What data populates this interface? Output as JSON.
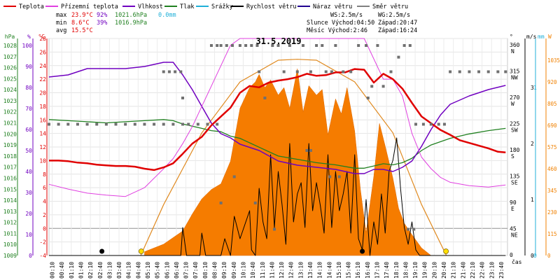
{
  "chart_data": {
    "type": "line",
    "title": "31.5.2019",
    "xlabel": "čas",
    "x_ticks": [
      "00:10",
      "00:40",
      "01:10",
      "01:40",
      "02:10",
      "02:40",
      "03:10",
      "03:40",
      "04:10",
      "04:40",
      "05:10",
      "05:40",
      "06:10",
      "06:40",
      "07:10",
      "07:40",
      "08:10",
      "08:40",
      "09:10",
      "09:40",
      "10:10",
      "10:40",
      "11:10",
      "11:40",
      "12:10",
      "12:40",
      "13:10",
      "13:40",
      "14:10",
      "14:40",
      "15:10",
      "15:40",
      "16:10",
      "16:40",
      "17:10",
      "17:40",
      "18:10",
      "18:40",
      "19:10",
      "19:40",
      "20:10",
      "20:40",
      "21:10",
      "21:40",
      "22:10",
      "22:40",
      "23:10",
      "23:40"
    ],
    "legend": [
      {
        "name": "Teplota",
        "color": "#e00000"
      },
      {
        "name": "Přízemní teplota",
        "color": "#e040e0"
      },
      {
        "name": "Vlhkost",
        "color": "#7000c0"
      },
      {
        "name": "Tlak",
        "color": "#208020"
      },
      {
        "name": "Srážky",
        "color": "#20b0d8"
      },
      {
        "name": "Rychlost větru",
        "color": "#000000"
      },
      {
        "name": "Náraz větru",
        "color": "#200090"
      },
      {
        "name": "Směr větru",
        "color": "#808080"
      }
    ],
    "stats": {
      "max_label": "max",
      "max_temp": "23.9°C",
      "max_hum": "92%",
      "max_press": "1021.6hPa",
      "max_rain": "0.0mm",
      "min_label": "min",
      "min_temp": "8.6°C",
      "min_hum": "39%",
      "min_press": "1016.9hPa",
      "avg_label": "avg",
      "avg_temp": "15.5°C"
    },
    "info": {
      "ws": "WS:2.5m/s",
      "wg": "WG:2.5m/s",
      "sun": "Slunce Východ:04:50",
      "sunset": "Západ:20:47",
      "moon": "Měsíc Východ:2:46",
      "moonset": "Západ:16:24"
    },
    "axes": {
      "hpa": {
        "label": "hPa",
        "ticks": [
          1028,
          1027,
          1026,
          1025,
          1024,
          1023,
          1022,
          1021,
          1020,
          1019,
          1018,
          1017,
          1016,
          1015,
          1014,
          1013,
          1012,
          1011,
          1010,
          1009
        ]
      },
      "pct": {
        "label": "%",
        "ticks": [
          100,
          90,
          80,
          70,
          60,
          50,
          40,
          30,
          20,
          10,
          0
        ]
      },
      "temp": {
        "label": "°C",
        "ticks": [
          28,
          26,
          24,
          22,
          20,
          18,
          16,
          14,
          12,
          10,
          8,
          6,
          4,
          2,
          0,
          -2,
          -4
        ]
      },
      "deg": {
        "label": "°",
        "ticks": [
          {
            "v": 360,
            "d": "N"
          },
          {
            "v": 315,
            "d": "NW"
          },
          {
            "v": 270,
            "d": "W"
          },
          {
            "v": 225,
            "d": "SW"
          },
          {
            "v": 180,
            "d": "S"
          },
          {
            "v": 135,
            "d": "SE"
          },
          {
            "v": 90,
            "d": "E"
          },
          {
            "v": 45,
            "d": "NE"
          },
          {
            "v": 0,
            "d": ""
          }
        ]
      },
      "ms": {
        "label": "m/s",
        "ticks": [
          {
            "v": "3"
          },
          {
            "v": "2"
          },
          {
            "v": "1"
          },
          {
            "v": "0"
          }
        ]
      },
      "mm": {
        "label": "mm",
        "ticks": [
          {
            "v": "1"
          },
          {
            "v": "0"
          }
        ]
      },
      "wm2": {
        "label": "W",
        "ticks": [
          1035,
          920,
          805,
          690,
          575,
          460,
          345,
          230,
          115,
          0
        ]
      }
    },
    "temp_range": [
      -4,
      28
    ],
    "series": [
      {
        "name": "Teplota",
        "unit": "°C",
        "x": [
          0,
          0.5,
          1,
          1.5,
          2,
          2.5,
          3,
          3.5,
          4,
          4.5,
          5,
          5.5,
          6,
          6.5,
          7,
          7.5,
          8,
          8.5,
          9,
          9.5,
          10,
          10.5,
          11,
          11.5,
          12,
          12.5,
          13,
          13.5,
          14,
          14.5,
          15,
          15.5,
          16,
          16.5,
          17,
          17.5,
          18,
          18.5,
          19,
          19.5,
          20,
          20.5,
          21,
          21.5,
          22,
          22.5,
          23,
          23.5,
          23.9
        ],
        "y": [
          10,
          10,
          9.9,
          9.7,
          9.6,
          9.4,
          9.3,
          9.2,
          9.2,
          9.1,
          8.8,
          8.6,
          9,
          9.6,
          11,
          12.5,
          13.5,
          15.2,
          16.5,
          17.8,
          20,
          21,
          20.8,
          21.5,
          21.8,
          22,
          22.3,
          22.8,
          22.5,
          22.6,
          23,
          23,
          23.5,
          23.4,
          21.5,
          22.8,
          22,
          20.6,
          18.5,
          16.5,
          15.5,
          14.5,
          13.8,
          13,
          12.6,
          12.2,
          11.8,
          11.3,
          11.2
        ]
      },
      {
        "name": "Přízemní teplota",
        "unit": "°C",
        "x": [
          0,
          1,
          2,
          3,
          4,
          5,
          6,
          6.5,
          7,
          7.5,
          8,
          8.5,
          9,
          9.5,
          10,
          11,
          12,
          13,
          14,
          15,
          16,
          16.5,
          17,
          17.5,
          18,
          18.5,
          19,
          19.5,
          20,
          20.5,
          21,
          22,
          23,
          23.9
        ],
        "y": [
          6.5,
          5.8,
          5.2,
          4.9,
          4.7,
          6,
          8.8,
          10.3,
          12.5,
          15,
          18,
          21,
          24,
          27,
          28,
          28,
          28,
          28,
          28,
          28,
          28,
          28,
          25,
          22,
          22,
          19.5,
          14,
          10.5,
          8.8,
          7.5,
          6.8,
          6.3,
          6.1,
          6.4
        ]
      },
      {
        "name": "Vlhkost",
        "unit": "%",
        "x": [
          0,
          1,
          2,
          3,
          4,
          5,
          6,
          6.5,
          7,
          7.5,
          8,
          8.5,
          9,
          9.5,
          10,
          11,
          12,
          13,
          14,
          15,
          16,
          16.5,
          17,
          17.5,
          18,
          18.5,
          19,
          19.5,
          20,
          20.5,
          21,
          22,
          23,
          23.9
        ],
        "y": [
          85,
          86,
          89,
          89,
          89,
          90,
          92,
          92,
          86,
          79,
          71,
          63,
          58,
          56,
          53,
          50,
          45,
          43,
          42,
          41,
          39,
          39,
          41,
          41,
          40,
          42,
          45,
          52,
          60,
          67,
          72,
          76,
          79,
          81
        ]
      },
      {
        "name": "Tlak",
        "unit": "hPa",
        "x": [
          0,
          1,
          2,
          3,
          4,
          5,
          6,
          6.5,
          7,
          7.5,
          8,
          8.5,
          9,
          9.5,
          10,
          11,
          12,
          13,
          14,
          15,
          16,
          16.5,
          17,
          17.5,
          18,
          18.5,
          19,
          19.5,
          20,
          21,
          22,
          23,
          23.9
        ],
        "y": [
          1021.3,
          1021.2,
          1021.1,
          1021.0,
          1021.1,
          1021.2,
          1021.3,
          1021.2,
          1020.9,
          1020.7,
          1020.5,
          1020.3,
          1020.2,
          1019.8,
          1019.6,
          1018.8,
          1018.0,
          1017.7,
          1017.4,
          1017.2,
          1016.9,
          1016.9,
          1017.1,
          1017.3,
          1017.2,
          1017.4,
          1017.8,
          1018.5,
          1019.0,
          1019.6,
          1020.0,
          1020.3,
          1020.5
        ]
      },
      {
        "name": "Sluneční svit",
        "unit": "W",
        "x": [
          5,
          6,
          7,
          7.5,
          8,
          8.5,
          9,
          9.5,
          10,
          10.5,
          10.8,
          11,
          11.3,
          11.6,
          12,
          12.3,
          12.6,
          13,
          13.3,
          13.6,
          14,
          14.3,
          14.6,
          15,
          15.3,
          15.6,
          16,
          16.3,
          16.6,
          17,
          17.3,
          17.6,
          18,
          18.3,
          18.6,
          19,
          19.5,
          20
        ],
        "y": [
          20,
          60,
          130,
          220,
          300,
          350,
          380,
          500,
          780,
          890,
          920,
          960,
          890,
          930,
          850,
          890,
          780,
          990,
          760,
          900,
          850,
          880,
          640,
          830,
          750,
          890,
          660,
          350,
          120,
          420,
          700,
          580,
          410,
          250,
          170,
          110,
          40,
          0
        ]
      },
      {
        "name": "Sluneční svit max",
        "unit": "W",
        "x": [
          4.8,
          6,
          8,
          10,
          12,
          13,
          14,
          16,
          18,
          19.5,
          20.8
        ],
        "y": [
          0,
          270,
          650,
          920,
          1035,
          1040,
          1035,
          920,
          650,
          270,
          0
        ]
      },
      {
        "name": "Rychlost větru",
        "unit": "m/s",
        "x": [
          0,
          6.9,
          7,
          7.2,
          7.3,
          7.9,
          8,
          8.2,
          8.3,
          9,
          9.2,
          9.5,
          9.7,
          10,
          10.2,
          10.5,
          10.6,
          10.8,
          11,
          11.2,
          11.4,
          11.6,
          11.8,
          12,
          12.2,
          12.4,
          12.6,
          12.8,
          13,
          13.2,
          13.4,
          13.6,
          13.8,
          14,
          14.2,
          14.4,
          14.6,
          14.8,
          15,
          15.2,
          15.4,
          15.6,
          15.8,
          16,
          16.2,
          16.4,
          16.6,
          16.8,
          17,
          17.2,
          17.4,
          17.6,
          17.8,
          18,
          18.2,
          18.4,
          18.6,
          18.8,
          19,
          19.2,
          19.4,
          23.9
        ],
        "y": [
          0,
          0,
          0.5,
          0,
          0,
          0,
          0.4,
          0,
          0,
          0,
          0.3,
          0,
          0.7,
          0.3,
          0.5,
          0.8,
          0.1,
          0,
          1.2,
          0.6,
          0.3,
          1.8,
          0.5,
          1.5,
          0.9,
          0.2,
          2.0,
          0.6,
          1.1,
          1.3,
          0.5,
          2.0,
          0.8,
          1.3,
          0.9,
          0.4,
          1.8,
          0.5,
          1.5,
          0.8,
          1.1,
          1.5,
          0.4,
          1.8,
          0.3,
          0.1,
          1.0,
          0,
          0.6,
          0.2,
          1.1,
          0.4,
          1.5,
          1.7,
          2.1,
          1.2,
          0.5,
          0.2,
          0.6,
          0.1,
          0,
          0
        ]
      },
      {
        "name": "Směr větru",
        "unit": "°",
        "points": [
          [
            0,
            225
          ],
          [
            0.5,
            225
          ],
          [
            1,
            225
          ],
          [
            1.5,
            225
          ],
          [
            2,
            225
          ],
          [
            2.5,
            225
          ],
          [
            3,
            225
          ],
          [
            3.5,
            225
          ],
          [
            4,
            225
          ],
          [
            4.5,
            225
          ],
          [
            5,
            225
          ],
          [
            5.5,
            225
          ],
          [
            6,
            225
          ],
          [
            6.5,
            225
          ],
          [
            7,
            225
          ],
          [
            7.3,
            225
          ],
          [
            7.8,
            225
          ],
          [
            8.3,
            225
          ],
          [
            8.8,
            225
          ],
          [
            6,
            315
          ],
          [
            6.3,
            315
          ],
          [
            6.6,
            315
          ],
          [
            6.9,
            315
          ],
          [
            7,
            270
          ],
          [
            8.5,
            360
          ],
          [
            8.8,
            360
          ],
          [
            9,
            360
          ],
          [
            9.3,
            360
          ],
          [
            9.6,
            360
          ],
          [
            10,
            360
          ],
          [
            10.3,
            360
          ],
          [
            10.6,
            360
          ],
          [
            10.9,
            360
          ],
          [
            11,
            315
          ],
          [
            11.3,
            270
          ],
          [
            11.7,
            360
          ],
          [
            12,
            360
          ],
          [
            12.3,
            315
          ],
          [
            12.6,
            360
          ],
          [
            13,
            315
          ],
          [
            13.3,
            360
          ],
          [
            13.7,
            315
          ],
          [
            14,
            360
          ],
          [
            14.3,
            360
          ],
          [
            14.5,
            315
          ],
          [
            14.8,
            315
          ],
          [
            15,
            360
          ],
          [
            15.4,
            315
          ],
          [
            15.8,
            315
          ],
          [
            16.2,
            360
          ],
          [
            16.6,
            360
          ],
          [
            16.9,
            290
          ],
          [
            17.2,
            360
          ],
          [
            17.5,
            290
          ],
          [
            17.9,
            315
          ],
          [
            18.3,
            340
          ],
          [
            18.6,
            360
          ],
          [
            18.9,
            360
          ],
          [
            19.2,
            225
          ],
          [
            19.6,
            225
          ],
          [
            20,
            225
          ],
          [
            20.4,
            225
          ],
          [
            20.7,
            225
          ],
          [
            21,
            315
          ],
          [
            21.5,
            315
          ],
          [
            22,
            315
          ],
          [
            22.5,
            315
          ],
          [
            23,
            315
          ],
          [
            23.5,
            315
          ],
          [
            23.9,
            315
          ],
          [
            9,
            90
          ],
          [
            9.7,
            135
          ],
          [
            10.8,
            90
          ],
          [
            11.8,
            45
          ],
          [
            13.5,
            180
          ],
          [
            13.7,
            180
          ],
          [
            14.7,
            135
          ],
          [
            15.2,
            135
          ],
          [
            16.7,
            270
          ],
          [
            18.8,
            45
          ],
          [
            19.1,
            45
          ]
        ]
      },
      {
        "name": "Srážky",
        "unit": "mm",
        "x": [
          0,
          23.9
        ],
        "y": [
          0,
          0
        ]
      }
    ],
    "markers": {
      "moonrise_h": 2.77,
      "moonset_h": 16.4,
      "sunrise_h": 4.83,
      "sunset_h": 20.78
    }
  }
}
